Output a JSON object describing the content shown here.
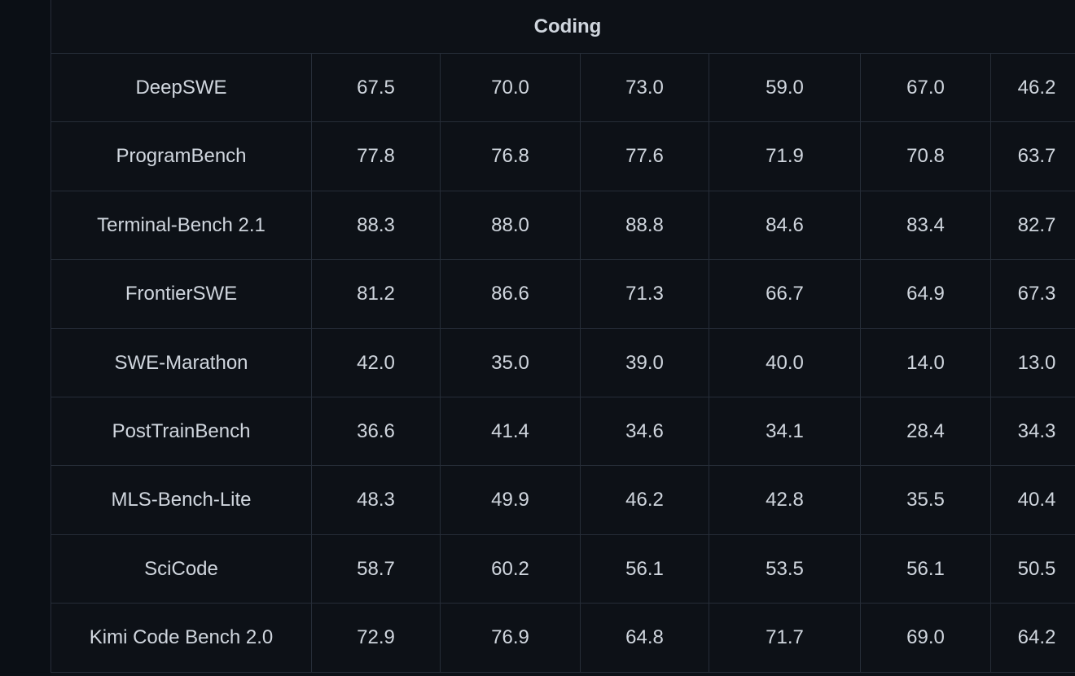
{
  "table": {
    "header": "Coding",
    "rows": [
      [
        "DeepSWE",
        "67.5",
        "70.0",
        "73.0",
        "59.0",
        "67.0",
        "46.2"
      ],
      [
        "ProgramBench",
        "77.8",
        "76.8",
        "77.6",
        "71.9",
        "70.8",
        "63.7"
      ],
      [
        "Terminal-Bench 2.1",
        "88.3",
        "88.0",
        "88.8",
        "84.6",
        "83.4",
        "82.7"
      ],
      [
        "FrontierSWE",
        "81.2",
        "86.6",
        "71.3",
        "66.7",
        "64.9",
        "67.3"
      ],
      [
        "SWE-Marathon",
        "42.0",
        "35.0",
        "39.0",
        "40.0",
        "14.0",
        "13.0"
      ],
      [
        "PostTrainBench",
        "36.6",
        "41.4",
        "34.6",
        "34.1",
        "28.4",
        "34.3"
      ],
      [
        "MLS-Bench-Lite",
        "48.3",
        "49.9",
        "46.2",
        "42.8",
        "35.5",
        "40.4"
      ],
      [
        "SciCode",
        "58.7",
        "60.2",
        "56.1",
        "53.5",
        "56.1",
        "50.5"
      ],
      [
        "Kimi Code Bench 2.0",
        "72.9",
        "76.9",
        "64.8",
        "71.7",
        "69.0",
        "64.2"
      ]
    ]
  }
}
